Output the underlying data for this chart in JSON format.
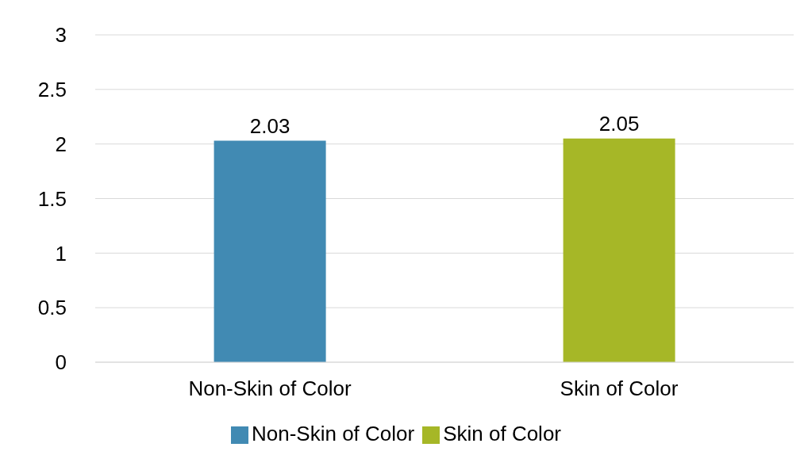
{
  "chart_data": {
    "type": "bar",
    "categories": [
      "Non-Skin of Color",
      "Skin of Color"
    ],
    "series": [
      {
        "name": "Non-Skin of Color",
        "color": "#418ab3",
        "values": [
          2.03,
          null
        ]
      },
      {
        "name": "Skin of Color",
        "color": "#a6b727",
        "values": [
          null,
          2.05
        ]
      }
    ],
    "ylim": [
      0,
      3
    ],
    "yticks": [
      0,
      0.5,
      1,
      1.5,
      2,
      2.5,
      3
    ],
    "grid": "y",
    "data_labels": true,
    "legend": "bottom"
  }
}
